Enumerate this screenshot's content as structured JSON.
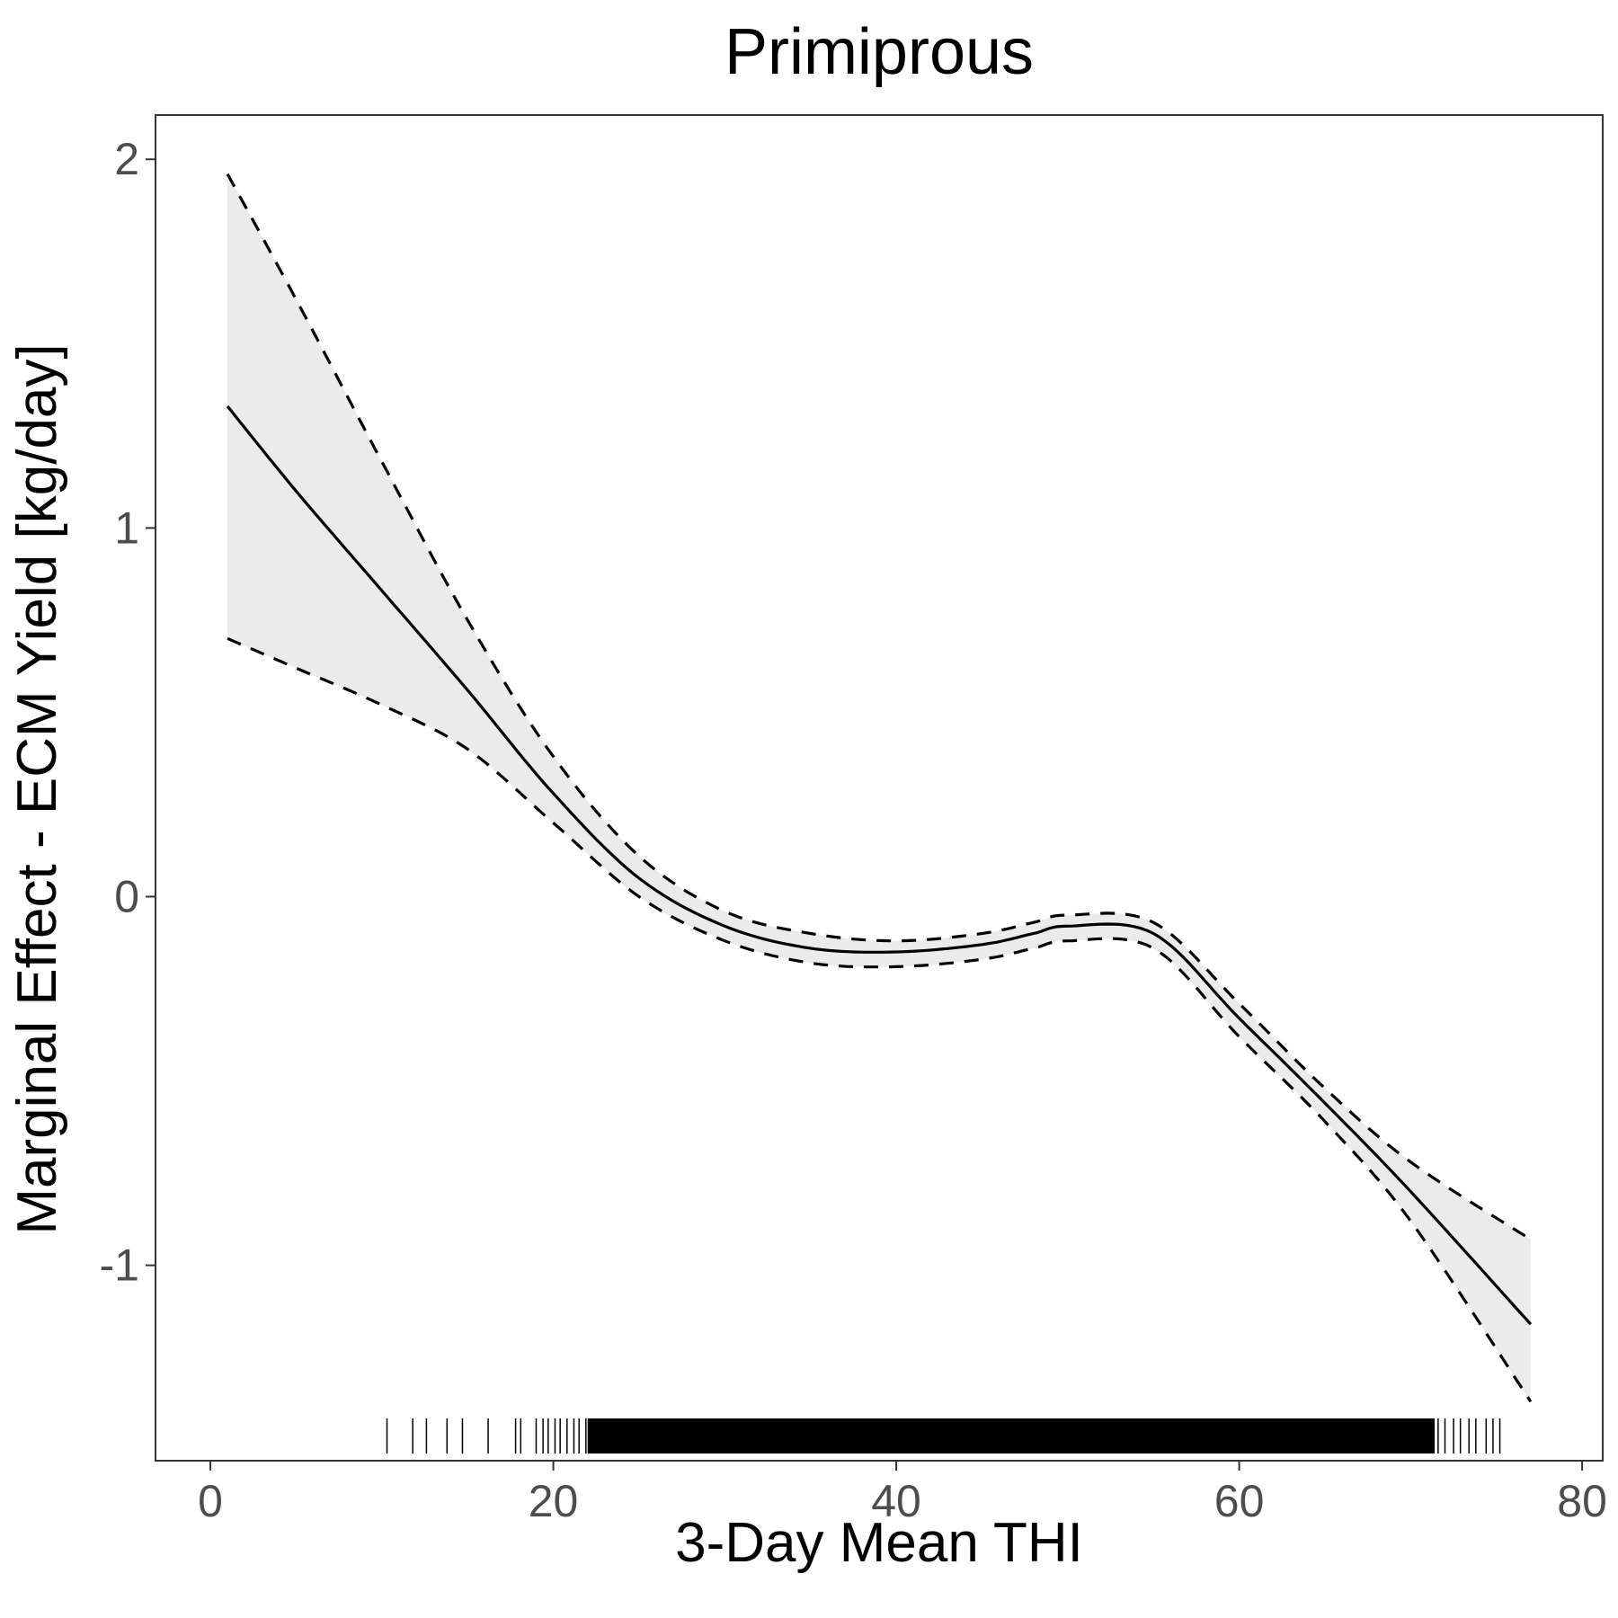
{
  "chart_data": {
    "type": "line",
    "title": "Primiprous",
    "xlabel": "3-Day Mean THI",
    "ylabel": "Marginal Effect - ECM Yield [kg/day]",
    "xlim": [
      -3.2,
      81.2
    ],
    "ylim": [
      -1.53,
      2.12
    ],
    "x_ticks": [
      0,
      20,
      40,
      60,
      80
    ],
    "y_ticks": [
      -1,
      0,
      1,
      2
    ],
    "grid": false,
    "legend": "none",
    "colors": {
      "line": "#000000",
      "band": "#ebebeb",
      "tick_text": "#4d4d4d",
      "panel_border": "#333333"
    },
    "series": [
      {
        "role": "estimate",
        "style": "solid",
        "x": [
          1,
          5,
          10,
          15,
          20,
          25,
          30,
          35,
          40,
          45,
          48,
          50,
          55,
          60,
          65,
          70,
          77
        ],
        "y": [
          1.33,
          1.1,
          0.83,
          0.56,
          0.28,
          0.05,
          -0.08,
          -0.14,
          -0.15,
          -0.13,
          -0.1,
          -0.08,
          -0.1,
          -0.33,
          -0.56,
          -0.8,
          -1.16
        ]
      },
      {
        "role": "upper-ci",
        "style": "dashed",
        "x": [
          1,
          5,
          10,
          15,
          20,
          25,
          30,
          35,
          40,
          45,
          48,
          50,
          55,
          60,
          65,
          70,
          77
        ],
        "y": [
          1.96,
          1.62,
          1.18,
          0.75,
          0.38,
          0.11,
          -0.04,
          -0.1,
          -0.12,
          -0.1,
          -0.07,
          -0.05,
          -0.07,
          -0.29,
          -0.52,
          -0.72,
          -0.93
        ]
      },
      {
        "role": "lower-ci",
        "style": "dashed",
        "x": [
          1,
          5,
          10,
          15,
          20,
          25,
          30,
          35,
          40,
          45,
          48,
          50,
          55,
          60,
          65,
          70,
          77
        ],
        "y": [
          0.7,
          0.62,
          0.52,
          0.4,
          0.2,
          0.0,
          -0.12,
          -0.18,
          -0.19,
          -0.17,
          -0.14,
          -0.12,
          -0.14,
          -0.38,
          -0.61,
          -0.88,
          -1.37
        ]
      }
    ],
    "rug": {
      "sparse_x": [
        10.3,
        11.8,
        12.6,
        13.8,
        14.7,
        16.2,
        17.8,
        18.1,
        19.0,
        19.4,
        19.7,
        20.1,
        20.4,
        20.8,
        21.2,
        21.5,
        21.9,
        22.3,
        22.8,
        23.4,
        24.2,
        24.7,
        71.6,
        72.0,
        72.5,
        72.9,
        73.4,
        73.8,
        74.4,
        74.8,
        75.2
      ],
      "dense_from": 22.0,
      "dense_to": 71.4
    }
  }
}
